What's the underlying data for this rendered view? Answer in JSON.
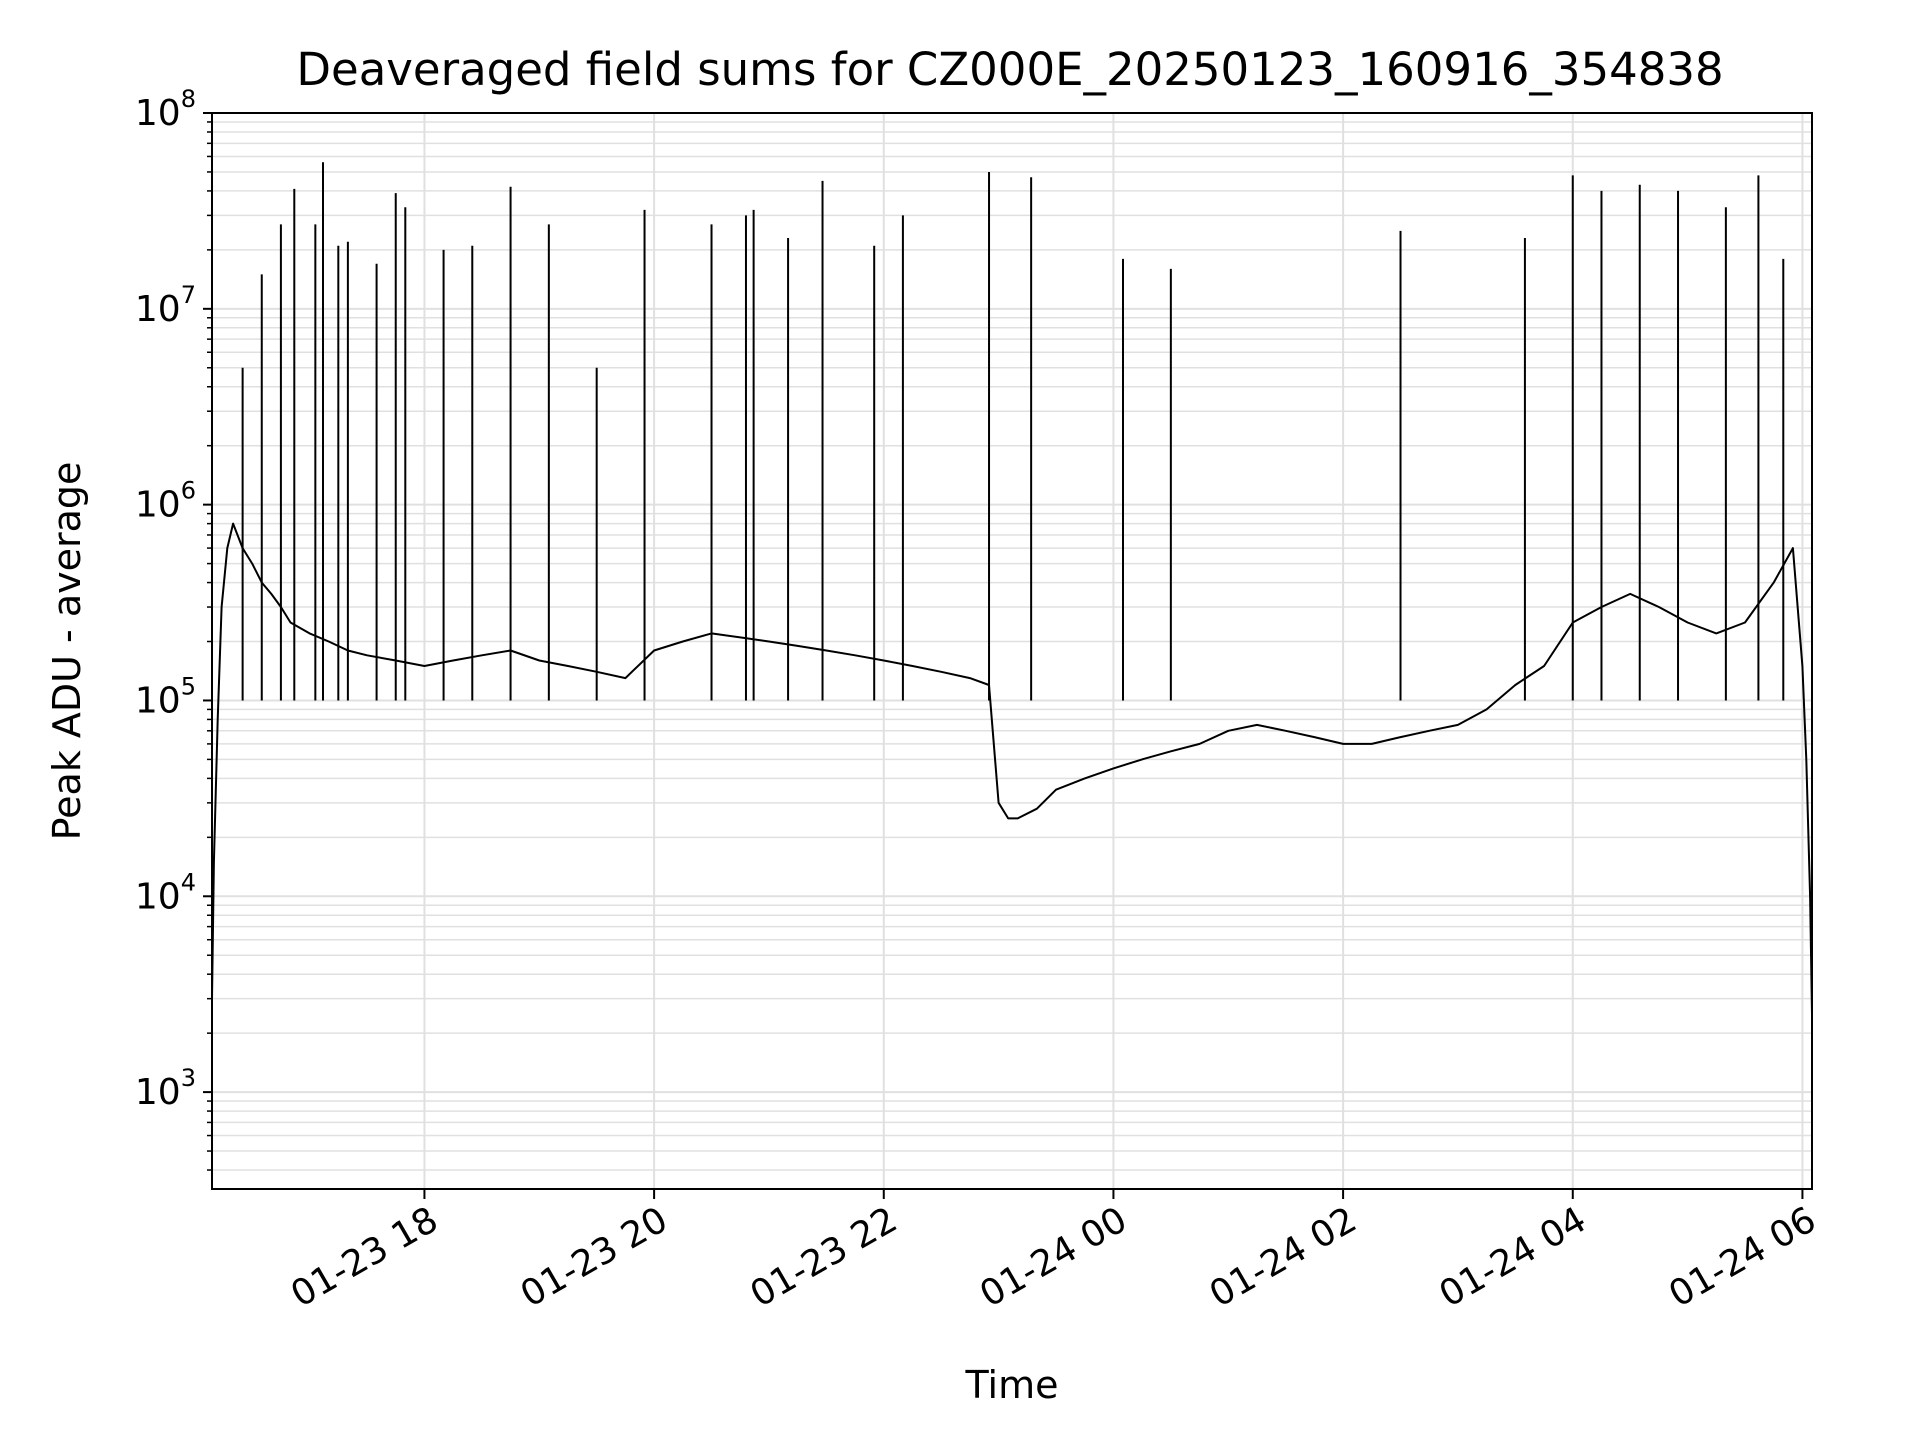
{
  "chart_data": {
    "type": "line",
    "title": "Deaveraged field sums for CZ000E_20250123_160916_354838",
    "xlabel": "Time",
    "ylabel": "Peak ADU - average",
    "yscale": "log",
    "grid": true,
    "line_color": "#000000",
    "grid_color": "#e0e0e0",
    "xlim": [
      "2025-01-23 16:09",
      "2025-01-24 06:05"
    ],
    "ylim": [
      320,
      100000000
    ],
    "x_ticks": [
      {
        "value": "2025-01-23 18:00",
        "label": "01-23 18"
      },
      {
        "value": "2025-01-23 20:00",
        "label": "01-23 20"
      },
      {
        "value": "2025-01-23 22:00",
        "label": "01-23 22"
      },
      {
        "value": "2025-01-24 00:00",
        "label": "01-24 00"
      },
      {
        "value": "2025-01-24 02:00",
        "label": "01-24 02"
      },
      {
        "value": "2025-01-24 04:00",
        "label": "01-24 04"
      },
      {
        "value": "2025-01-24 06:00",
        "label": "01-24 06"
      }
    ],
    "y_ticks": [
      {
        "value": 1000,
        "base": "10",
        "exp": "3"
      },
      {
        "value": 10000,
        "base": "10",
        "exp": "4"
      },
      {
        "value": 100000,
        "base": "10",
        "exp": "5"
      },
      {
        "value": 1000000,
        "base": "10",
        "exp": "6"
      },
      {
        "value": 10000000,
        "base": "10",
        "exp": "7"
      },
      {
        "value": 100000000,
        "base": "10",
        "exp": "8"
      }
    ],
    "series": [
      {
        "x": [
          "2025-01-23 16:09",
          "2025-01-23 16:10",
          "2025-01-23 16:12",
          "2025-01-23 16:14",
          "2025-01-23 16:17",
          "2025-01-23 16:20",
          "2025-01-23 16:25",
          "2025-01-23 16:30",
          "2025-01-23 16:35",
          "2025-01-23 16:40",
          "2025-01-23 16:45",
          "2025-01-23 16:50",
          "2025-01-23 17:00",
          "2025-01-23 17:10",
          "2025-01-23 17:20",
          "2025-01-23 17:30",
          "2025-01-23 17:45",
          "2025-01-23 18:00",
          "2025-01-23 18:15",
          "2025-01-23 18:30",
          "2025-01-23 18:45",
          "2025-01-23 19:00",
          "2025-01-23 19:15",
          "2025-01-23 19:30",
          "2025-01-23 19:45",
          "2025-01-23 20:00",
          "2025-01-23 20:15",
          "2025-01-23 20:30",
          "2025-01-23 20:45",
          "2025-01-23 21:00",
          "2025-01-23 21:15",
          "2025-01-23 21:30",
          "2025-01-23 21:45",
          "2025-01-23 22:00",
          "2025-01-23 22:15",
          "2025-01-23 22:30",
          "2025-01-23 22:45",
          "2025-01-23 22:55",
          "2025-01-23 23:00",
          "2025-01-23 23:05",
          "2025-01-23 23:10",
          "2025-01-23 23:20",
          "2025-01-23 23:30",
          "2025-01-23 23:45",
          "2025-01-24 00:00",
          "2025-01-24 00:15",
          "2025-01-24 00:30",
          "2025-01-24 00:45",
          "2025-01-24 01:00",
          "2025-01-24 01:15",
          "2025-01-24 01:30",
          "2025-01-24 01:45",
          "2025-01-24 02:00",
          "2025-01-24 02:15",
          "2025-01-24 02:30",
          "2025-01-24 02:45",
          "2025-01-24 03:00",
          "2025-01-24 03:15",
          "2025-01-24 03:30",
          "2025-01-24 03:45",
          "2025-01-24 04:00",
          "2025-01-24 04:15",
          "2025-01-24 04:30",
          "2025-01-24 04:45",
          "2025-01-24 05:00",
          "2025-01-24 05:15",
          "2025-01-24 05:30",
          "2025-01-24 05:45",
          "2025-01-24 05:55",
          "2025-01-24 06:00",
          "2025-01-24 06:02",
          "2025-01-24 06:04",
          "2025-01-24 06:05"
        ],
        "y": [
          3000,
          15000,
          80000,
          300000,
          600000,
          800000,
          600000,
          500000,
          400000,
          350000,
          300000,
          250000,
          220000,
          200000,
          180000,
          170000,
          160000,
          150000,
          160000,
          170000,
          180000,
          160000,
          150000,
          140000,
          130000,
          180000,
          200000,
          220000,
          210000,
          200000,
          190000,
          180000,
          170000,
          160000,
          150000,
          140000,
          130000,
          120000,
          30000,
          25000,
          25000,
          28000,
          35000,
          40000,
          45000,
          50000,
          55000,
          60000,
          70000,
          75000,
          70000,
          65000,
          60000,
          60000,
          65000,
          70000,
          75000,
          90000,
          120000,
          150000,
          250000,
          300000,
          350000,
          300000,
          250000,
          220000,
          250000,
          400000,
          600000,
          150000,
          50000,
          10000,
          2500
        ],
        "peaks": [
          {
            "x": "2025-01-23 16:25",
            "y": 5000000
          },
          {
            "x": "2025-01-23 16:35",
            "y": 15000000
          },
          {
            "x": "2025-01-23 16:45",
            "y": 27000000
          },
          {
            "x": "2025-01-23 16:52",
            "y": 41000000
          },
          {
            "x": "2025-01-23 17:03",
            "y": 27000000
          },
          {
            "x": "2025-01-23 17:07",
            "y": 56000000
          },
          {
            "x": "2025-01-23 17:15",
            "y": 21000000
          },
          {
            "x": "2025-01-23 17:20",
            "y": 22000000
          },
          {
            "x": "2025-01-23 17:35",
            "y": 17000000
          },
          {
            "x": "2025-01-23 17:45",
            "y": 39000000
          },
          {
            "x": "2025-01-23 17:50",
            "y": 33000000
          },
          {
            "x": "2025-01-23 18:10",
            "y": 20000000
          },
          {
            "x": "2025-01-23 18:25",
            "y": 21000000
          },
          {
            "x": "2025-01-23 18:45",
            "y": 42000000
          },
          {
            "x": "2025-01-23 19:05",
            "y": 27000000
          },
          {
            "x": "2025-01-23 19:30",
            "y": 5000000
          },
          {
            "x": "2025-01-23 19:55",
            "y": 32000000
          },
          {
            "x": "2025-01-23 20:30",
            "y": 27000000
          },
          {
            "x": "2025-01-23 20:48",
            "y": 30000000
          },
          {
            "x": "2025-01-23 20:52",
            "y": 32000000
          },
          {
            "x": "2025-01-23 21:10",
            "y": 23000000
          },
          {
            "x": "2025-01-23 21:28",
            "y": 45000000
          },
          {
            "x": "2025-01-23 21:55",
            "y": 21000000
          },
          {
            "x": "2025-01-23 22:10",
            "y": 30000000
          },
          {
            "x": "2025-01-23 22:55",
            "y": 50000000
          },
          {
            "x": "2025-01-23 23:17",
            "y": 47000000
          },
          {
            "x": "2025-01-24 00:05",
            "y": 18000000
          },
          {
            "x": "2025-01-24 00:30",
            "y": 16000000
          },
          {
            "x": "2025-01-24 02:30",
            "y": 25000000
          },
          {
            "x": "2025-01-24 03:35",
            "y": 23000000
          },
          {
            "x": "2025-01-24 04:00",
            "y": 48000000
          },
          {
            "x": "2025-01-24 04:15",
            "y": 40000000
          },
          {
            "x": "2025-01-24 04:35",
            "y": 43000000
          },
          {
            "x": "2025-01-24 04:55",
            "y": 40000000
          },
          {
            "x": "2025-01-24 05:20",
            "y": 33000000
          },
          {
            "x": "2025-01-24 05:37",
            "y": 48000000
          },
          {
            "x": "2025-01-24 05:50",
            "y": 18000000
          }
        ]
      }
    ]
  }
}
